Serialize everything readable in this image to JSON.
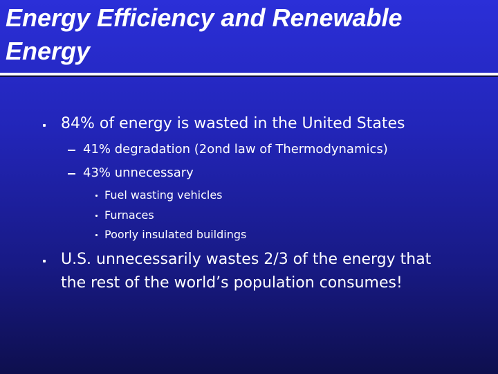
{
  "slide": {
    "title_line1": "Energy Efficiency and Renewable",
    "title_line2": "Energy",
    "bullets": {
      "b1": "84% of energy is wasted in the United States",
      "b1_sub1": "41% degradation (2ond law of Thermodynamics)",
      "b1_sub2": "43% unnecessary",
      "b1_sub2_items": [
        "Fuel wasting vehicles",
        "Furnaces",
        "Poorly insulated buildings"
      ],
      "b2_line1": "U.S. unnecessarily wastes 2/3 of the energy that",
      "b2_line2": "the rest of the world’s population consumes!"
    }
  },
  "colors": {
    "background_top": "#2b2fd8",
    "background_bottom": "#0e0f4e",
    "text": "#ffffff"
  }
}
